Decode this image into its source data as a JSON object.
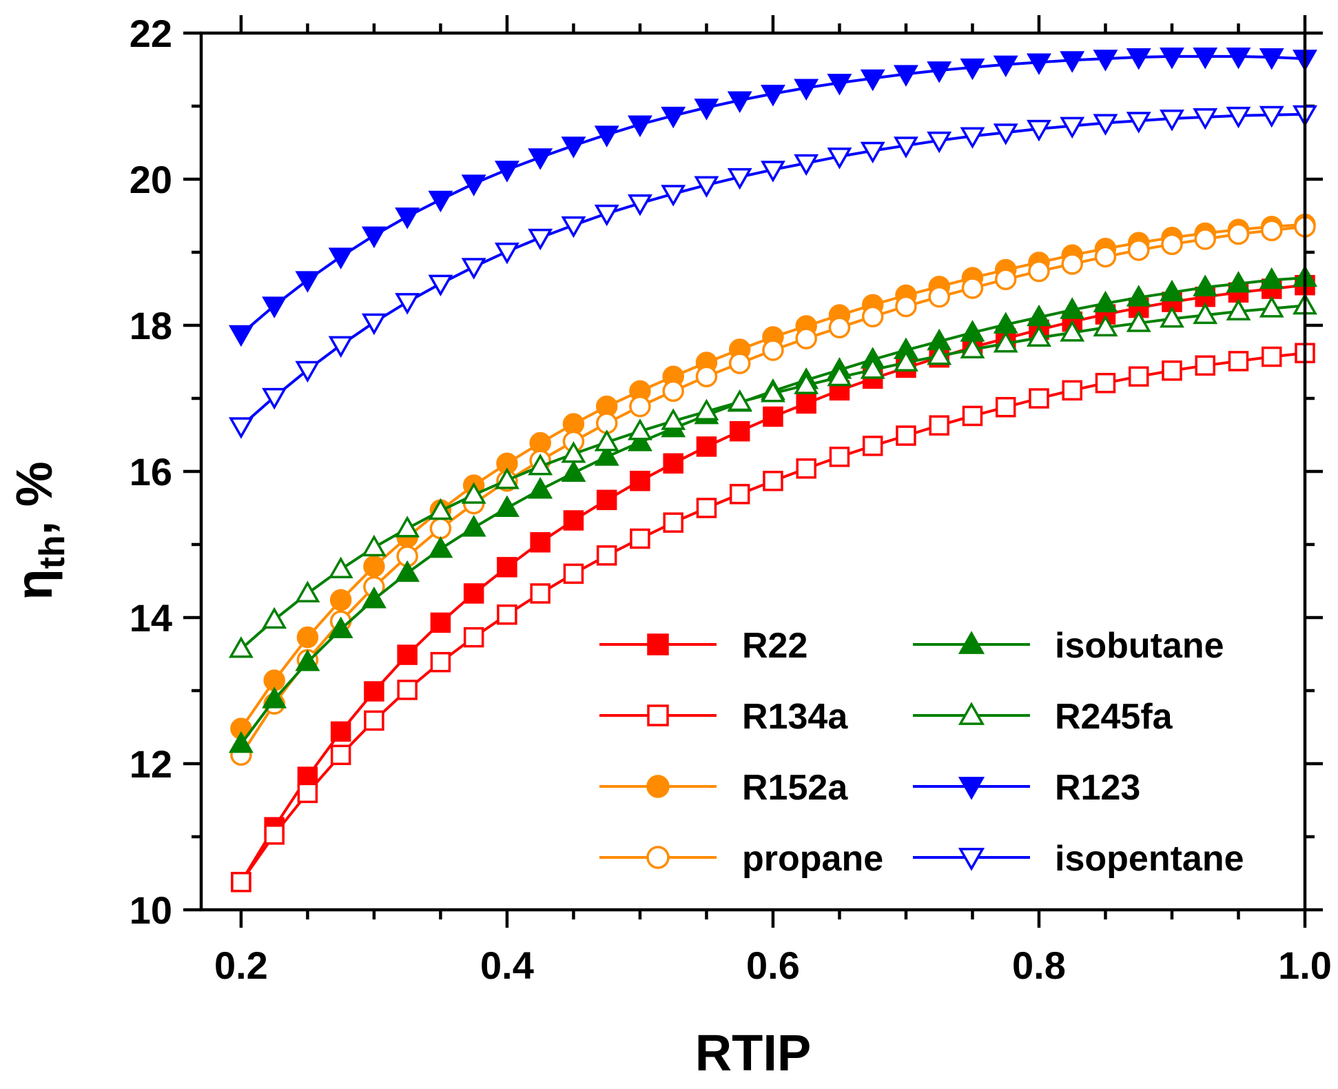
{
  "chart_data": {
    "type": "line",
    "xlabel": "RTIP",
    "ylabel": "η_th, %",
    "ylabel_main": "η",
    "ylabel_sub": "th",
    "ylabel_suffix": ", %",
    "xlim": [
      0.17,
      1.0
    ],
    "ylim": [
      10,
      22
    ],
    "x_ticks": [
      0.2,
      0.4,
      0.6,
      0.8,
      1.0
    ],
    "x_tick_labels": [
      "0.2",
      "0.4",
      "0.6",
      "0.8",
      "1.0"
    ],
    "y_ticks": [
      10,
      12,
      14,
      16,
      18,
      20,
      22
    ],
    "y_tick_labels": [
      "10",
      "12",
      "14",
      "16",
      "18",
      "20",
      "22"
    ],
    "grid": false,
    "legend_position": "bottom-right",
    "x": [
      0.2,
      0.225,
      0.25,
      0.275,
      0.3,
      0.325,
      0.35,
      0.375,
      0.4,
      0.425,
      0.45,
      0.475,
      0.5,
      0.525,
      0.55,
      0.575,
      0.6,
      0.625,
      0.65,
      0.675,
      0.7,
      0.725,
      0.75,
      0.775,
      0.8,
      0.825,
      0.85,
      0.875,
      0.9,
      0.925,
      0.95,
      0.975,
      1.0
    ],
    "series": [
      {
        "name": "R22",
        "color": "#ff0000",
        "marker": "square",
        "filled": true,
        "values": [
          10.38,
          11.13,
          11.82,
          12.44,
          12.99,
          13.49,
          13.93,
          14.33,
          14.69,
          15.03,
          15.33,
          15.61,
          15.87,
          16.11,
          16.34,
          16.55,
          16.75,
          16.93,
          17.11,
          17.27,
          17.42,
          17.56,
          17.7,
          17.82,
          17.94,
          18.05,
          18.15,
          18.24,
          18.32,
          18.39,
          18.45,
          18.5,
          18.55
        ]
      },
      {
        "name": "R134a",
        "color": "#ff0000",
        "marker": "square",
        "filled": false,
        "values": [
          10.38,
          11.03,
          11.6,
          12.12,
          12.59,
          13.01,
          13.39,
          13.73,
          14.04,
          14.33,
          14.6,
          14.85,
          15.08,
          15.3,
          15.5,
          15.69,
          15.87,
          16.04,
          16.2,
          16.35,
          16.49,
          16.63,
          16.76,
          16.88,
          17.0,
          17.11,
          17.21,
          17.3,
          17.38,
          17.45,
          17.51,
          17.57,
          17.62
        ]
      },
      {
        "name": "R152a",
        "color": "#ff8c00",
        "marker": "circle",
        "filled": true,
        "values": [
          12.48,
          13.14,
          13.73,
          14.24,
          14.7,
          15.1,
          15.47,
          15.81,
          16.11,
          16.39,
          16.65,
          16.89,
          17.1,
          17.3,
          17.49,
          17.67,
          17.84,
          17.99,
          18.14,
          18.28,
          18.41,
          18.53,
          18.65,
          18.76,
          18.86,
          18.96,
          19.05,
          19.13,
          19.2,
          19.26,
          19.31,
          19.35,
          19.38
        ]
      },
      {
        "name": "propane",
        "color": "#ff8c00",
        "marker": "circle",
        "filled": false,
        "values": [
          12.12,
          12.82,
          13.42,
          13.95,
          14.42,
          14.84,
          15.22,
          15.56,
          15.87,
          16.15,
          16.41,
          16.66,
          16.89,
          17.1,
          17.3,
          17.48,
          17.66,
          17.82,
          17.97,
          18.12,
          18.26,
          18.39,
          18.51,
          18.63,
          18.74,
          18.84,
          18.94,
          19.03,
          19.11,
          19.18,
          19.25,
          19.3,
          19.35
        ]
      },
      {
        "name": "isobutane",
        "color": "#008000",
        "marker": "triangle-up",
        "filled": true,
        "values": [
          12.27,
          12.88,
          13.39,
          13.84,
          14.25,
          14.61,
          14.94,
          15.23,
          15.5,
          15.75,
          15.98,
          16.2,
          16.4,
          16.59,
          16.77,
          16.94,
          17.1,
          17.25,
          17.39,
          17.53,
          17.66,
          17.78,
          17.9,
          18.01,
          18.11,
          18.21,
          18.3,
          18.38,
          18.45,
          18.52,
          18.57,
          18.62,
          18.65
        ]
      },
      {
        "name": "R245fa",
        "color": "#008000",
        "marker": "triangle-up",
        "filled": false,
        "values": [
          13.57,
          13.97,
          14.33,
          14.66,
          14.96,
          15.22,
          15.46,
          15.68,
          15.88,
          16.07,
          16.24,
          16.4,
          16.55,
          16.69,
          16.82,
          16.95,
          17.07,
          17.18,
          17.29,
          17.39,
          17.49,
          17.58,
          17.67,
          17.75,
          17.83,
          17.9,
          17.97,
          18.03,
          18.09,
          18.14,
          18.19,
          18.23,
          18.27
        ]
      },
      {
        "name": "R123",
        "color": "#0000ff",
        "marker": "triangle-down",
        "filled": true,
        "values": [
          17.88,
          18.27,
          18.62,
          18.94,
          19.23,
          19.49,
          19.72,
          19.94,
          20.13,
          20.3,
          20.46,
          20.61,
          20.75,
          20.87,
          20.98,
          21.08,
          21.17,
          21.25,
          21.32,
          21.38,
          21.44,
          21.49,
          21.53,
          21.57,
          21.6,
          21.63,
          21.65,
          21.67,
          21.68,
          21.68,
          21.68,
          21.67,
          21.65
        ]
      },
      {
        "name": "isopentane",
        "color": "#0000ff",
        "marker": "triangle-down",
        "filled": false,
        "values": [
          16.62,
          17.02,
          17.39,
          17.73,
          18.04,
          18.32,
          18.57,
          18.8,
          19.01,
          19.2,
          19.37,
          19.53,
          19.67,
          19.8,
          19.92,
          20.03,
          20.13,
          20.22,
          20.31,
          20.39,
          20.46,
          20.53,
          20.59,
          20.64,
          20.69,
          20.73,
          20.77,
          20.8,
          20.83,
          20.85,
          20.87,
          20.88,
          20.89
        ]
      }
    ]
  }
}
